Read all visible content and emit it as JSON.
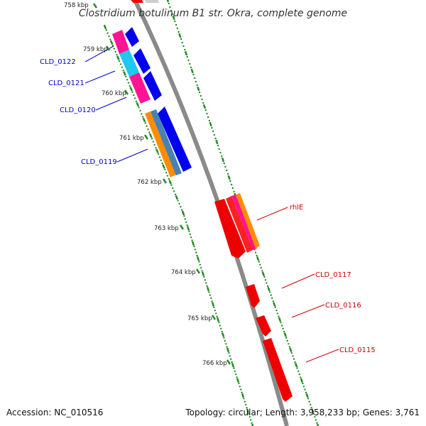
{
  "title": "Clostridium botulinum B1 str. Okra, complete genome",
  "footer": {
    "accession": "Accession: NC_010516",
    "info": "Topology: circular; Length: 3,958,233 bp; Genes: 3,761"
  },
  "kbp_labels": [
    "758 kbp",
    "759 kbp",
    "760 kbp",
    "761 kbp",
    "762 kbp",
    "763 kbp",
    "764 kbp",
    "765 kbp",
    "766 kbp"
  ],
  "genes": [
    {
      "label": "CLD_0122",
      "color": "#0000cc"
    },
    {
      "label": "CLD_0121",
      "color": "#0000cc"
    },
    {
      "label": "CLD_0120",
      "color": "#0000cc"
    },
    {
      "label": "CLD_0119",
      "color": "#0000cc"
    },
    {
      "label": "rhlE",
      "color": "#cc0000"
    },
    {
      "label": "CLD_0117",
      "color": "#cc0000"
    },
    {
      "label": "CLD_0116",
      "color": "#cc0000"
    },
    {
      "label": "CLD_0115",
      "color": "#cc0000"
    }
  ],
  "colors": {
    "forward_cds": "#ff0000",
    "reverse_cds": "#0000ee",
    "backbone": "#888888",
    "tick_dots": "#228b22",
    "magenta_feature": "#ff1493",
    "cyan_feature": "#1ec8f0",
    "orange_feature": "#ff8c00",
    "steelblue_feature": "#4682b4"
  }
}
